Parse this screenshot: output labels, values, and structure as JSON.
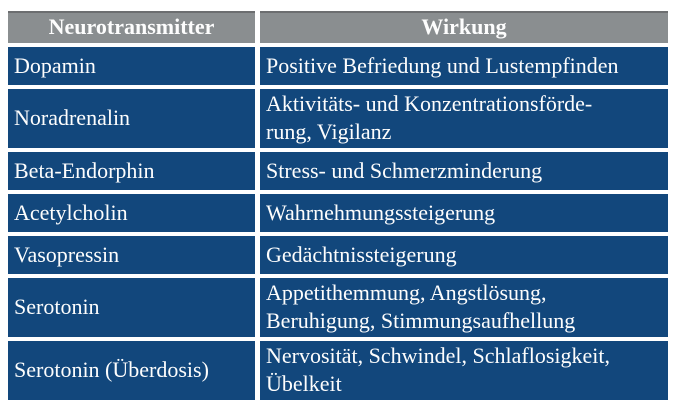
{
  "colors": {
    "header_bg": "#8a8e90",
    "row_bg": "#12477c",
    "text_color": "#fdfdfd",
    "page_bg": "#ffffff"
  },
  "table": {
    "columns": {
      "neurotransmitter": "Neurotransmitter",
      "wirkung": "Wirkung"
    },
    "rows": [
      {
        "name": "Dopamin",
        "wirkung": "Positive Befriedung und Lustempfinden"
      },
      {
        "name": "Noradrenalin",
        "wirkung": "Aktivitäts- und Konzentrationsförde-\nrung, Vigilanz"
      },
      {
        "name": "Beta-Endorphin",
        "wirkung": "Stress- und Schmerzminderung"
      },
      {
        "name": "Acetylcholin",
        "wirkung": "Wahrnehmungssteigerung"
      },
      {
        "name": "Vasopressin",
        "wirkung": "Gedächtnissteigerung"
      },
      {
        "name": "Serotonin",
        "wirkung": "Appetithemmung, Angstlösung,\nBeruhigung, Stimmungsaufhellung"
      },
      {
        "name": "Serotonin (Überdosis)",
        "wirkung": "Nervosität, Schwindel, Schlaflosigkeit,\nÜbelkeit"
      }
    ]
  }
}
